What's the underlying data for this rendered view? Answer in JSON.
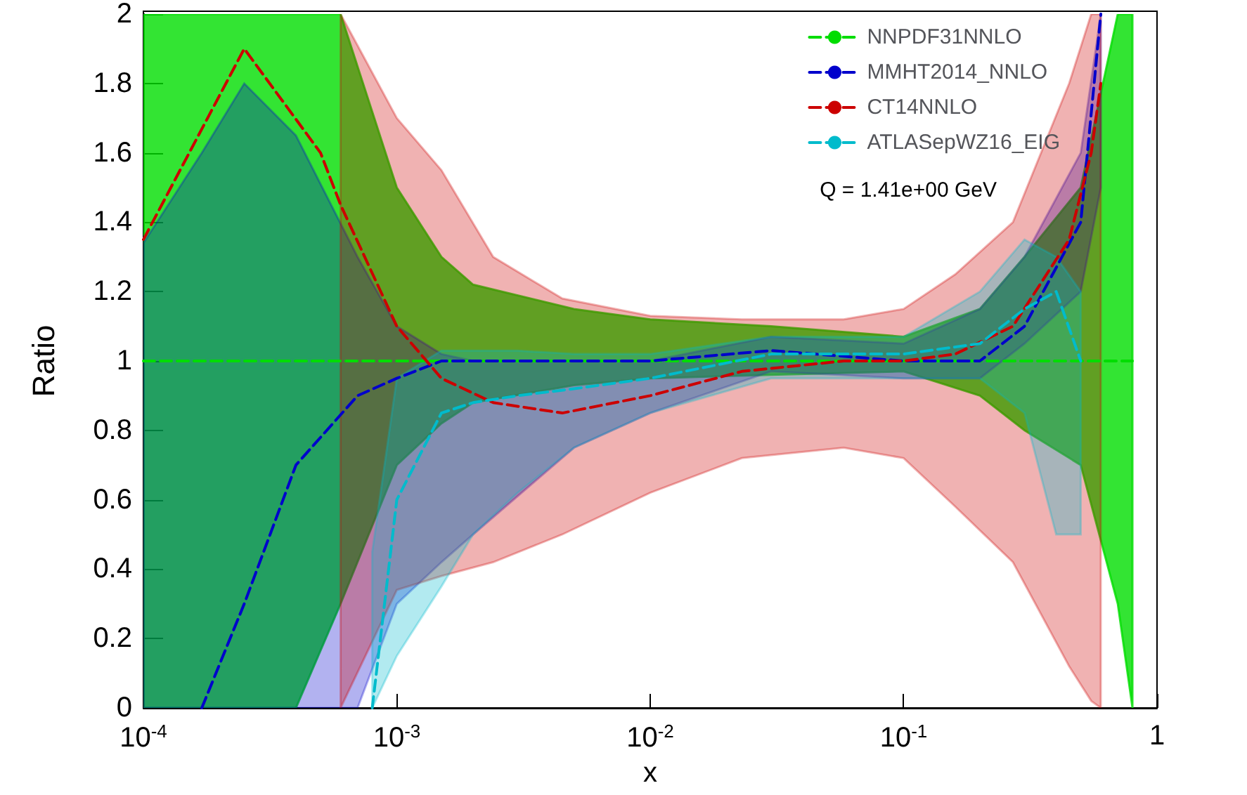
{
  "chart_data": {
    "type": "line",
    "xlabel": "x",
    "ylabel": "Ratio",
    "log": "x",
    "xlim": [
      0.0001,
      1
    ],
    "ylim": [
      0,
      2
    ],
    "xticks": [
      {
        "value": 0.0001,
        "label": "10$^{-4}$"
      },
      {
        "value": 0.001,
        "label": "10$^{-3}$"
      },
      {
        "value": 0.01,
        "label": "10$^{-2}$"
      },
      {
        "value": 0.1,
        "label": "10$^{-1}$"
      },
      1
    ],
    "yticks": [
      0,
      0.2,
      0.4,
      0.6,
      0.8,
      1,
      1.2,
      1.4,
      1.6,
      1.8,
      2
    ],
    "grid": false,
    "legend": "top right",
    "marker": "none",
    "line_style": "dashed",
    "annotations": [
      "Q = 1.41e+00 GeV"
    ],
    "series": [
      {
        "name": "NNPDF31NNLO",
        "color": "#00dd00",
        "x": [
          0.0001,
          0.0002,
          0.0004,
          0.0006,
          0.001,
          0.0015,
          0.002,
          0.005,
          0.01,
          0.03,
          0.1,
          0.2,
          0.3,
          0.5,
          0.7,
          0.8
        ],
        "values": [
          1,
          1,
          1,
          1,
          1,
          1,
          1,
          1,
          1,
          1,
          1,
          1,
          1,
          1,
          1,
          1
        ],
        "lower": [
          0,
          0,
          0,
          0.3,
          0.7,
          0.82,
          0.88,
          0.93,
          0.95,
          0.96,
          0.97,
          0.9,
          0.8,
          0.7,
          0.3,
          0
        ],
        "upper": [
          2,
          2,
          2,
          2,
          1.5,
          1.3,
          1.22,
          1.15,
          1.12,
          1.1,
          1.07,
          1.15,
          1.3,
          1.5,
          2,
          2
        ]
      },
      {
        "name": "MMHT2014_NNLO",
        "color": "#0000cc",
        "x": [
          0.0001,
          0.00017,
          0.00025,
          0.0004,
          0.0007,
          0.001,
          0.0015,
          0.002,
          0.005,
          0.01,
          0.03,
          0.1,
          0.2,
          0.3,
          0.5,
          0.6
        ],
        "values": [
          null,
          0,
          0.3,
          0.7,
          0.9,
          0.95,
          1,
          1,
          1,
          1,
          1.03,
          1,
          1,
          1.1,
          1.4,
          2
        ],
        "lower": [
          0,
          0,
          0,
          0,
          0,
          0.3,
          0.42,
          0.5,
          0.75,
          0.85,
          0.97,
          0.95,
          0.95,
          1.05,
          1.2,
          1.5
        ],
        "upper": [
          1.34,
          1.6,
          1.8,
          1.65,
          1.3,
          1.1,
          1.02,
          1,
          1,
          1,
          1.07,
          1.05,
          1.15,
          1.3,
          1.6,
          2
        ]
      },
      {
        "name": "CT14NNLO",
        "color": "#cc0000",
        "x": [
          0.0001,
          0.00025,
          0.0005,
          0.0006,
          0.001,
          0.0015,
          0.0024,
          0.0045,
          0.01,
          0.023,
          0.058,
          0.1,
          0.16,
          0.27,
          0.45,
          0.55,
          0.6
        ],
        "values": [
          1.35,
          1.9,
          1.6,
          1.45,
          1.1,
          0.95,
          0.88,
          0.85,
          0.9,
          0.97,
          1,
          1,
          1.02,
          1.1,
          1.35,
          1.6,
          1.8
        ],
        "lower": [
          null,
          null,
          null,
          0,
          0.34,
          0.38,
          0.42,
          0.5,
          0.62,
          0.72,
          0.75,
          0.72,
          0.58,
          0.42,
          0.12,
          0.02,
          0
        ],
        "upper": [
          null,
          null,
          null,
          2,
          1.7,
          1.55,
          1.3,
          1.18,
          1.13,
          1.12,
          1.12,
          1.15,
          1.25,
          1.4,
          1.8,
          2,
          2
        ]
      },
      {
        "name": "ATLASepWZ16_EIG",
        "color": "#00bbcc",
        "x": [
          0.0008,
          0.001,
          0.0015,
          0.002,
          0.003,
          0.005,
          0.01,
          0.03,
          0.1,
          0.2,
          0.3,
          0.4,
          0.5
        ],
        "values": [
          0,
          0.6,
          0.85,
          0.88,
          0.9,
          0.92,
          0.95,
          1.02,
          1.02,
          1.05,
          1.15,
          1.2,
          1
        ],
        "lower": [
          0,
          0.15,
          0.35,
          0.5,
          0.62,
          0.75,
          0.85,
          0.95,
          0.95,
          0.95,
          0.85,
          0.5,
          0.5
        ],
        "upper": [
          0.45,
          0.95,
          1.03,
          1.03,
          1.03,
          1.02,
          1.02,
          1.07,
          1.07,
          1.2,
          1.35,
          1.3,
          1.2
        ]
      }
    ]
  }
}
